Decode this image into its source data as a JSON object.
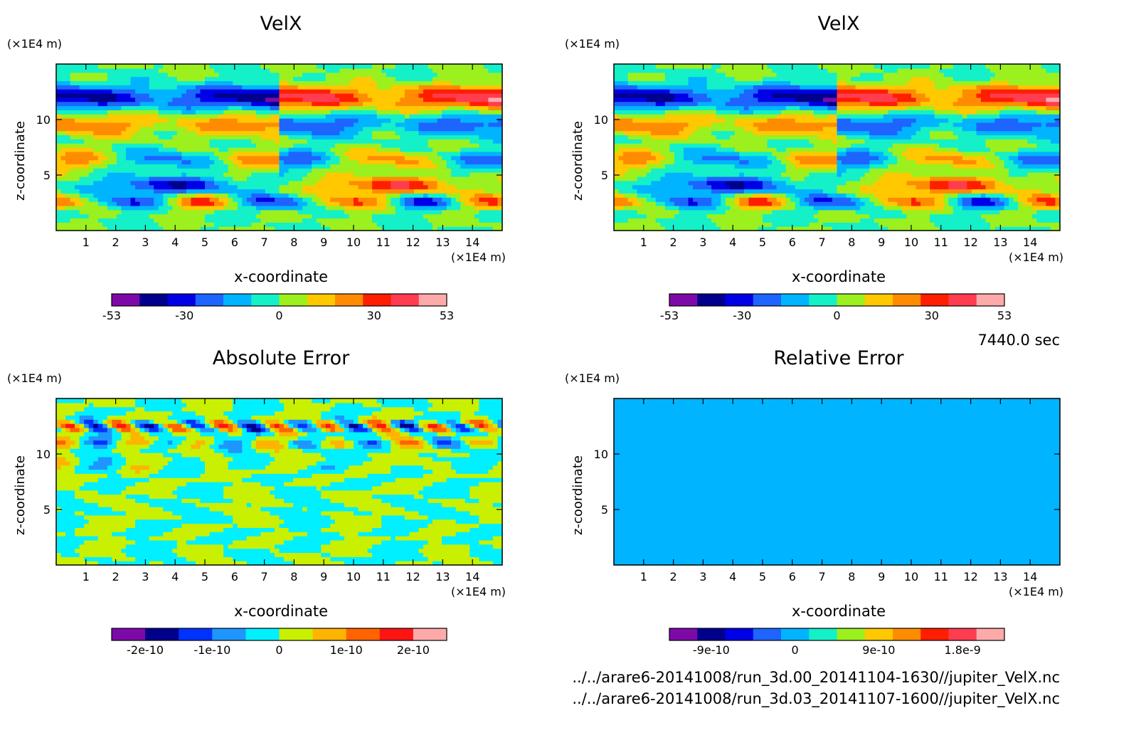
{
  "time_label": "7440.0 sec",
  "files": [
    "../../arare6-20141008/run_3d.00_20141104-1630//jupiter_VelX.nc",
    "../../arare6-20141008/run_3d.03_20141107-1600//jupiter_VelX.nc"
  ],
  "chart_data": [
    {
      "type": "heatmap",
      "title": "VelX",
      "xlabel": "x-coordinate",
      "ylabel": "z-coordinate",
      "x_unit": "(×1E4 m)",
      "y_unit": "(×1E4 m)",
      "xlim": [
        0,
        15
      ],
      "ylim": [
        0,
        15
      ],
      "xticks": [
        1,
        2,
        3,
        4,
        5,
        6,
        7,
        8,
        9,
        10,
        11,
        12,
        13,
        14
      ],
      "yticks": [
        5,
        10
      ],
      "colorbar": {
        "colors": [
          "#7d0aa8",
          "#00008c",
          "#0000e6",
          "#1e64ff",
          "#00b4ff",
          "#14f0c8",
          "#9bf01e",
          "#ffc800",
          "#ff8c00",
          "#ff1e00",
          "#ff3c50",
          "#ffaaaa"
        ],
        "tick_labels": [
          "-53",
          "-30",
          "0",
          "30",
          "53"
        ],
        "tick_values": [
          -53,
          -30,
          0,
          30,
          53
        ],
        "range": [
          -53,
          53
        ]
      }
    },
    {
      "type": "heatmap",
      "title": "VelX",
      "xlabel": "x-coordinate",
      "ylabel": "z-coordinate",
      "x_unit": "(×1E4 m)",
      "y_unit": "(×1E4 m)",
      "xlim": [
        0,
        15
      ],
      "ylim": [
        0,
        15
      ],
      "xticks": [
        1,
        2,
        3,
        4,
        5,
        6,
        7,
        8,
        9,
        10,
        11,
        12,
        13,
        14
      ],
      "yticks": [
        5,
        10
      ],
      "colorbar": {
        "colors": [
          "#7d0aa8",
          "#00008c",
          "#0000e6",
          "#1e64ff",
          "#00b4ff",
          "#14f0c8",
          "#9bf01e",
          "#ffc800",
          "#ff8c00",
          "#ff1e00",
          "#ff3c50",
          "#ffaaaa"
        ],
        "tick_labels": [
          "-53",
          "-30",
          "0",
          "30",
          "53"
        ],
        "tick_values": [
          -53,
          -30,
          0,
          30,
          53
        ],
        "range": [
          -53,
          53
        ]
      }
    },
    {
      "type": "heatmap",
      "title": "Absolute Error",
      "xlabel": "x-coordinate",
      "ylabel": "z-coordinate",
      "x_unit": "(×1E4 m)",
      "y_unit": "(×1E4 m)",
      "xlim": [
        0,
        15
      ],
      "ylim": [
        0,
        15
      ],
      "xticks": [
        1,
        2,
        3,
        4,
        5,
        6,
        7,
        8,
        9,
        10,
        11,
        12,
        13,
        14
      ],
      "yticks": [
        5,
        10
      ],
      "colorbar": {
        "colors": [
          "#7d0aa8",
          "#00008c",
          "#0032ff",
          "#1e96ff",
          "#00f0ff",
          "#c8f000",
          "#ffb400",
          "#ff6400",
          "#ff1414",
          "#ffaaaa"
        ],
        "tick_labels": [
          "-2e-10",
          "-1e-10",
          "0",
          "1e-10",
          "2e-10"
        ],
        "tick_values": [
          -2e-10,
          -1e-10,
          0,
          1e-10,
          2e-10
        ],
        "range": [
          -2.5e-10,
          2.5e-10
        ]
      }
    },
    {
      "type": "heatmap",
      "title": "Relative Error",
      "xlabel": "x-coordinate",
      "ylabel": "z-coordinate",
      "x_unit": "(×1E4 m)",
      "y_unit": "(×1E4 m)",
      "xlim": [
        0,
        15
      ],
      "ylim": [
        0,
        15
      ],
      "xticks": [
        1,
        2,
        3,
        4,
        5,
        6,
        7,
        8,
        9,
        10,
        11,
        12,
        13,
        14
      ],
      "yticks": [
        5,
        10
      ],
      "colorbar": {
        "colors": [
          "#7d0aa8",
          "#00008c",
          "#0000e6",
          "#1e64ff",
          "#00b4ff",
          "#14f0c8",
          "#9bf01e",
          "#ffc800",
          "#ff8c00",
          "#ff1e00",
          "#ff3c50",
          "#ffaaaa"
        ],
        "tick_labels": [
          "-9e-10",
          "0",
          "9e-10",
          "1.8e-9"
        ],
        "tick_values": [
          -9e-10,
          0,
          9e-10,
          1.8e-09
        ],
        "range": [
          -1.35e-09,
          2.25e-09
        ]
      }
    }
  ]
}
